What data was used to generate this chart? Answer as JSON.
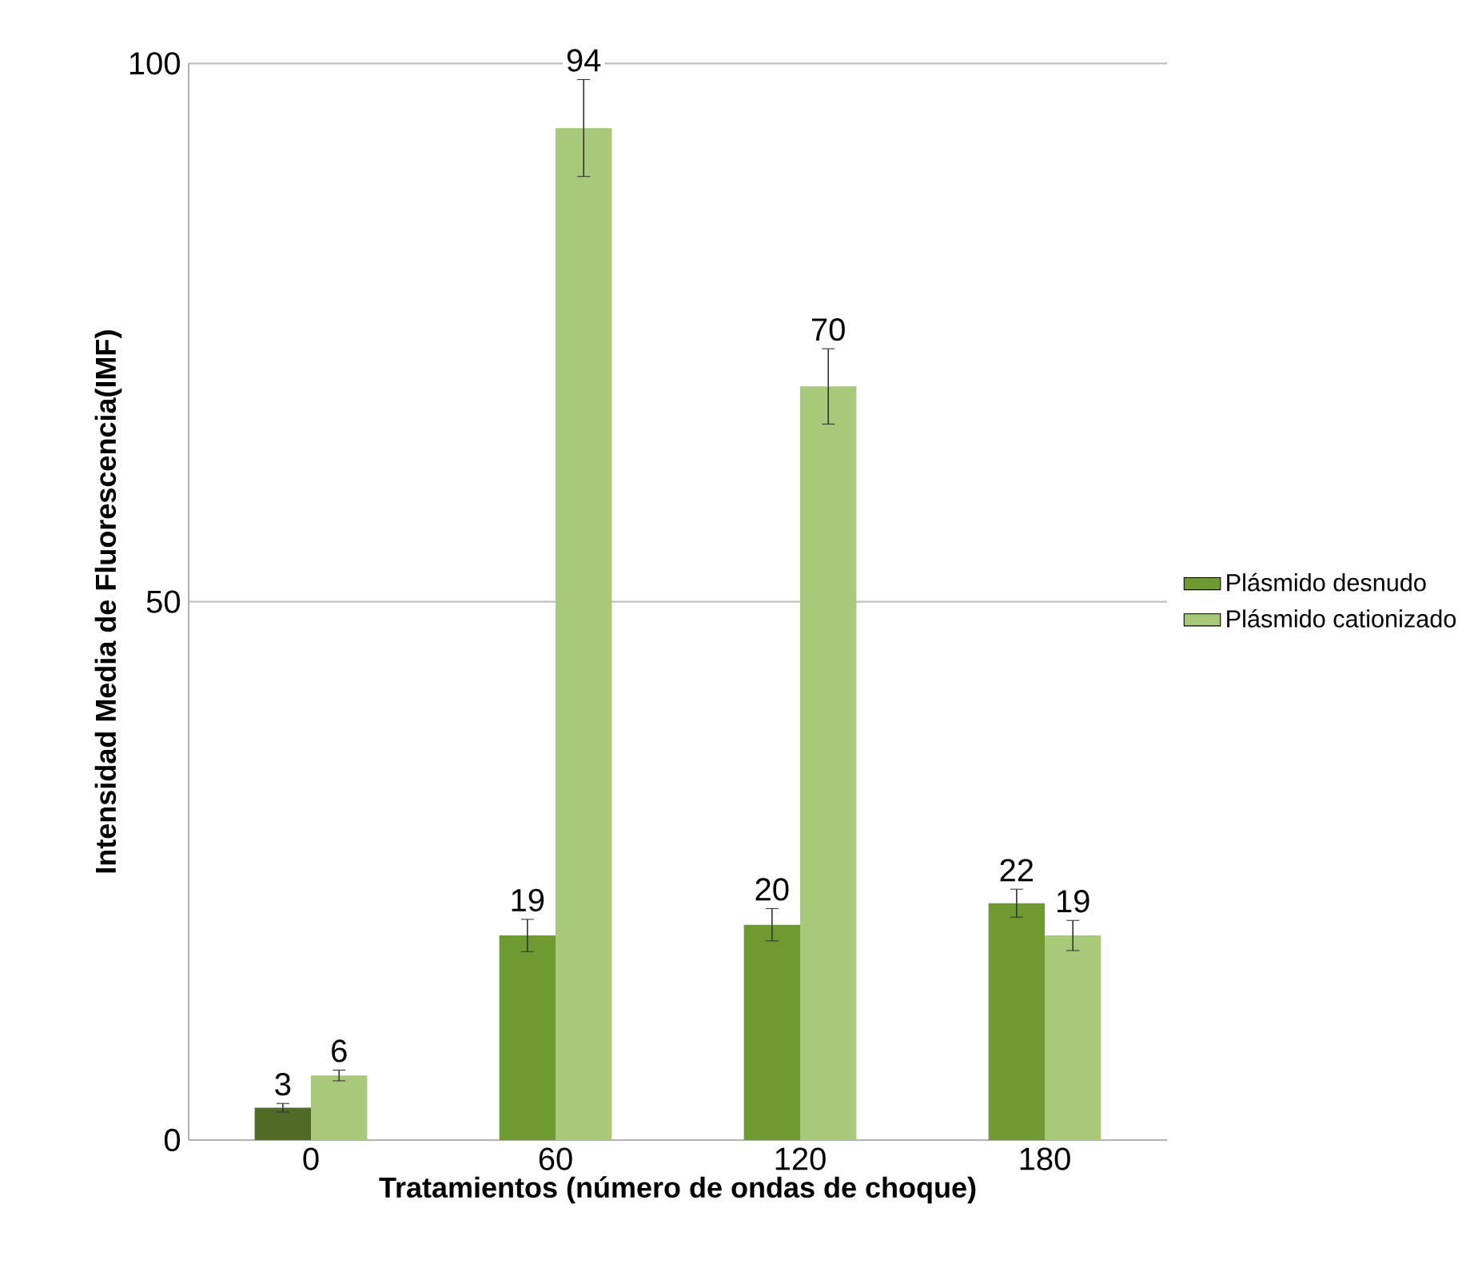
{
  "chart_data": {
    "type": "bar",
    "xlabel": "Tratamientos (número de ondas de choque)",
    "ylabel": "Intensidad  Media de Fluorescencia(IMF)",
    "categories": [
      "0",
      "60",
      "120",
      "180"
    ],
    "series": [
      {
        "name": "Plásmido desnudo",
        "color": "#6f9a32",
        "colors": [
          "#4f6b25",
          "#6f9a32",
          "#6f9a32",
          "#6f9a32"
        ],
        "values": [
          3,
          19,
          20,
          22
        ],
        "errors": [
          0.4,
          1.5,
          1.5,
          1.3
        ]
      },
      {
        "name": "Plásmido cationizado",
        "color": "#a8c87a",
        "colors": [
          "#a8c87a",
          "#a8c87a",
          "#a8c87a",
          "#a8c87a"
        ],
        "values": [
          6,
          94,
          70,
          19
        ],
        "errors": [
          0.5,
          4.5,
          3.5,
          1.4
        ]
      }
    ],
    "ylim": [
      0,
      100
    ],
    "yticks": [
      0,
      50,
      100
    ],
    "grid": "y",
    "legend": "right",
    "data_labels": true
  }
}
